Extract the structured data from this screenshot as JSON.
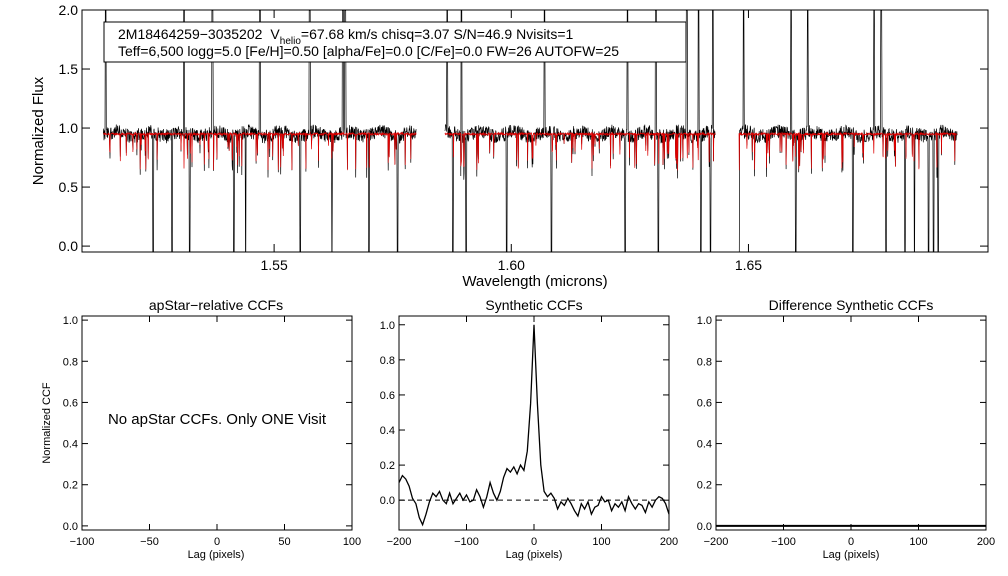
{
  "chart_data": [
    {
      "type": "line",
      "id": "spectrum",
      "ylabel": "Normalized Flux",
      "xlabel": "Wavelength (microns)",
      "xlim": [
        1.5095,
        1.7005
      ],
      "ylim": [
        -0.05,
        2.0
      ],
      "x_ticks": [
        1.55,
        1.6,
        1.65
      ],
      "x_tick_labels": [
        "1.55",
        "1.60",
        "1.65"
      ],
      "y_ticks": [
        0.0,
        0.5,
        1.0,
        1.5,
        2.0
      ],
      "y_tick_labels": [
        "0.0",
        "0.5",
        "1.0",
        "1.5",
        "2.0"
      ],
      "legend_box": {
        "star_id": "2M18464259−3035202",
        "v_symbol": "V",
        "v_subscript": "helio",
        "v_rest": "=67.68 km/s  chisq=3.07  S/N=46.9  Nvisits=1",
        "line2": "Teff=6,500 logg=5.0 [Fe/H]=0.50 [alpha/Fe]=0.0 [C/Fe]=0.0 FW=26 AUTOFW=25"
      },
      "chips": [
        [
          1.514,
          1.58
        ],
        [
          1.586,
          1.643
        ],
        [
          1.648,
          1.694
        ]
      ],
      "continuum_level": 0.95,
      "series": [
        {
          "name": "observed",
          "color": "#000000"
        },
        {
          "name": "model",
          "color": "#dd0000"
        }
      ],
      "deep_features": [
        1.5145,
        1.5245,
        1.5285,
        1.5322,
        1.5415,
        1.544,
        1.5555,
        1.5575,
        1.5622,
        1.57,
        1.576,
        1.5877,
        1.5905,
        1.599,
        1.6085,
        1.624,
        1.631,
        1.637,
        1.64,
        1.642,
        1.648,
        1.66,
        1.672,
        1.679,
        1.683,
        1.685,
        1.688,
        1.689,
        1.69
      ],
      "spikes": [
        1.5145,
        1.531,
        1.537,
        1.547,
        1.5575,
        1.5645,
        1.565,
        1.5865,
        1.5895,
        1.607,
        1.6245,
        1.6305,
        1.637,
        1.6395,
        1.6425,
        1.649,
        1.659,
        1.6625,
        1.6765,
        1.678
      ]
    },
    {
      "type": "line",
      "id": "apstar-ccf",
      "title": "apStar−relative CCFs",
      "xlabel": "Lag (pixels)",
      "ylabel": "Normalized CCF",
      "xlim": [
        -100,
        100
      ],
      "ylim": [
        -0.02,
        1.02
      ],
      "x_ticks": [
        -100,
        -50,
        0,
        50,
        100
      ],
      "x_tick_labels": [
        "−100",
        "−50",
        "0",
        "50",
        "100"
      ],
      "y_ticks": [
        0.0,
        0.2,
        0.4,
        0.6,
        0.8,
        1.0
      ],
      "y_tick_labels": [
        "0.0",
        "0.2",
        "0.4",
        "0.6",
        "0.8",
        "1.0"
      ],
      "annotation": "No apStar CCFs.  Only ONE Visit",
      "series": []
    },
    {
      "type": "line",
      "id": "synthetic-ccf",
      "title": "Synthetic CCFs",
      "xlabel": "Lag (pixels)",
      "xlim": [
        -200,
        200
      ],
      "ylim": [
        -0.17,
        1.05
      ],
      "x_ticks": [
        -200,
        -100,
        0,
        100,
        200
      ],
      "x_tick_labels": [
        "−200",
        "−100",
        "0",
        "100",
        "200"
      ],
      "y_ticks": [
        0.0,
        0.2,
        0.4,
        0.6,
        0.8,
        1.0
      ],
      "y_tick_labels": [
        "0.0",
        "0.2",
        "0.4",
        "0.6",
        "0.8",
        "1.0"
      ],
      "zero_line": 0.0,
      "series": [
        {
          "name": "ccf",
          "x": [
            -200,
            -195,
            -190,
            -185,
            -180,
            -175,
            -170,
            -165,
            -160,
            -155,
            -150,
            -145,
            -140,
            -135,
            -130,
            -125,
            -120,
            -115,
            -110,
            -105,
            -100,
            -95,
            -90,
            -85,
            -80,
            -75,
            -70,
            -65,
            -60,
            -55,
            -50,
            -45,
            -40,
            -35,
            -30,
            -25,
            -20,
            -15,
            -10,
            -5,
            0,
            5,
            10,
            15,
            20,
            25,
            30,
            35,
            40,
            45,
            50,
            55,
            60,
            65,
            70,
            75,
            80,
            85,
            90,
            95,
            100,
            105,
            110,
            115,
            120,
            125,
            130,
            135,
            140,
            145,
            150,
            155,
            160,
            165,
            170,
            175,
            180,
            185,
            190,
            195,
            200
          ],
          "y": [
            0.1,
            0.14,
            0.12,
            0.08,
            0.01,
            -0.02,
            -0.1,
            -0.14,
            -0.08,
            -0.01,
            0.04,
            0.02,
            0.05,
            0.0,
            -0.02,
            0.04,
            -0.02,
            0.01,
            0.04,
            0.0,
            0.03,
            -0.01,
            0.0,
            0.06,
            0.02,
            -0.04,
            0.02,
            0.1,
            0.04,
            0.0,
            0.05,
            0.13,
            0.18,
            0.16,
            0.19,
            0.15,
            0.2,
            0.17,
            0.28,
            0.55,
            1.0,
            0.55,
            0.2,
            0.05,
            0.02,
            0.04,
            0.01,
            -0.05,
            -0.01,
            -0.03,
            0.01,
            -0.02,
            -0.06,
            -0.09,
            -0.02,
            -0.05,
            -0.01,
            -0.08,
            -0.04,
            -0.03,
            0.02,
            -0.01,
            0.0,
            -0.06,
            -0.02,
            -0.04,
            -0.01,
            -0.06,
            0.02,
            -0.02,
            -0.05,
            -0.02,
            -0.03,
            -0.07,
            -0.01,
            -0.04,
            0.0,
            0.02,
            0.01,
            -0.02,
            -0.08
          ]
        }
      ]
    },
    {
      "type": "line",
      "id": "difference-ccf",
      "title": "Difference Synthetic CCFs",
      "xlabel": "Lag (pixels)",
      "xlim": [
        -200,
        200
      ],
      "ylim": [
        -0.02,
        1.02
      ],
      "x_ticks": [
        -200,
        -100,
        0,
        100,
        200
      ],
      "x_tick_labels": [
        "−200",
        "−100",
        "0",
        "100",
        "200"
      ],
      "y_ticks": [
        0.0,
        0.2,
        0.4,
        0.6,
        0.8,
        1.0
      ],
      "y_tick_labels": [
        "0.0",
        "0.2",
        "0.4",
        "0.6",
        "0.8",
        "1.0"
      ],
      "series": [
        {
          "name": "difference",
          "x": [
            -200,
            200
          ],
          "y": [
            0.0,
            0.0
          ]
        }
      ]
    }
  ]
}
